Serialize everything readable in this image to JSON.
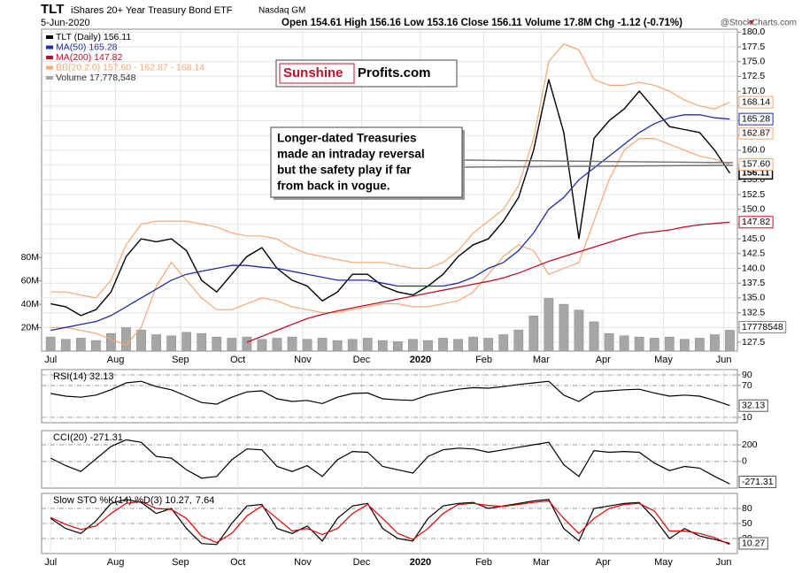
{
  "header": {
    "symbol": "TLT",
    "name": "iShares 20+ Year Treasury Bond ETF",
    "exchange": "Nasdaq GM",
    "date": "5-Jun-2020",
    "quote": "Open 154.61  High 156.16  Low 153.16  Close 156.11  Volume 17.8M  Chg -1.12 (-0.71%)",
    "source": "@StockCharts.com"
  },
  "logo": [
    "Sunshine",
    "Profits.com"
  ],
  "annotation": [
    "Longer-dated Treasuries",
    "made an intraday reversal",
    "but the safety play if far",
    "from back in vogue."
  ],
  "chart_data": [
    {
      "type": "line",
      "x": [
        0,
        1,
        2,
        3,
        4,
        5,
        6,
        7,
        8,
        9,
        10,
        11,
        12,
        13,
        14,
        15,
        16,
        17,
        18,
        19,
        20,
        21,
        22,
        23,
        24,
        25,
        26,
        27,
        28,
        29,
        30,
        31,
        32,
        33,
        34,
        35,
        36,
        37,
        38,
        39,
        40,
        41,
        42,
        43,
        44,
        45
      ],
      "xlim": [
        -0.6,
        45.5
      ],
      "xticks": [
        {
          "value": 0,
          "label": "Jul"
        },
        {
          "value": 4.3,
          "label": "Aug"
        },
        {
          "value": 8.6,
          "label": "Sep"
        },
        {
          "value": 12.4,
          "label": "Oct"
        },
        {
          "value": 16.7,
          "label": "Nov"
        },
        {
          "value": 20.6,
          "label": "Dec"
        },
        {
          "value": 24.5,
          "label": "2020"
        },
        {
          "value": 28.7,
          "label": "Feb"
        },
        {
          "value": 32.5,
          "label": "Mar"
        },
        {
          "value": 36.6,
          "label": "Apr"
        },
        {
          "value": 40.6,
          "label": "May"
        },
        {
          "value": 44.6,
          "label": "Jun"
        }
      ],
      "ylim": [
        126,
        180.5
      ],
      "yticks": [
        127.5,
        {
          "value": 130,
          "label": "130.0"
        },
        132.5,
        {
          "value": 135,
          "label": "135.0"
        },
        137.5,
        {
          "value": 140,
          "label": "140.0"
        },
        142.5,
        {
          "value": 145,
          "label": "145.0"
        },
        147.5,
        {
          "value": 150,
          "label": "150.0"
        },
        152.5,
        {
          "value": 155,
          "label": "155.0"
        },
        157.5,
        {
          "value": 160,
          "label": "160.0"
        },
        162.5,
        {
          "value": 165,
          "label": "165.0"
        },
        167.5,
        {
          "value": 170,
          "label": "170.0"
        },
        172.5,
        {
          "value": 175,
          "label": "175.0"
        },
        177.5,
        {
          "value": 180,
          "label": "180.0"
        }
      ],
      "y2lim": [
        0,
        275000000
      ],
      "y2ticks": [
        {
          "value": 20000000,
          "label": "20M"
        },
        {
          "value": 40000000,
          "label": "40M"
        },
        {
          "value": 60000000,
          "label": "60M"
        },
        {
          "value": 80000000,
          "label": "80M"
        }
      ],
      "grid": true,
      "series": [
        {
          "name": "TLT (Daily) 156.11",
          "color": "#000000",
          "values": [
            134,
            133.5,
            132,
            133,
            136,
            142,
            145,
            144.5,
            145,
            143,
            138,
            136,
            139,
            142,
            143.5,
            140,
            138,
            137,
            134.5,
            136,
            139,
            139,
            137,
            136,
            135.5,
            137,
            139,
            142,
            144,
            145,
            148,
            152,
            160,
            172,
            163,
            145,
            162,
            165,
            167,
            170,
            167,
            164,
            163.5,
            163,
            160,
            156.11
          ]
        },
        {
          "name": "MA(50) 165.28",
          "color": "#1f2f9f",
          "values": [
            129.5,
            130,
            130.5,
            131,
            132,
            133.5,
            135,
            136.5,
            138,
            139,
            139.5,
            140,
            140.5,
            140.5,
            140.2,
            140,
            139.5,
            139,
            138.5,
            138,
            138,
            138,
            137.5,
            137,
            137,
            137,
            137,
            137.5,
            138.5,
            140,
            141,
            143,
            146,
            150,
            152,
            155,
            157,
            159,
            161,
            163,
            164.5,
            165.5,
            166,
            166,
            165.5,
            165.28
          ]
        },
        {
          "name": "MA(200) 147.82",
          "color": "#c0102a",
          "values": [
            null,
            null,
            null,
            null,
            null,
            null,
            null,
            null,
            null,
            null,
            null,
            null,
            null,
            127.5,
            128.5,
            129.5,
            130.5,
            131.5,
            132.2,
            132.8,
            133.3,
            133.8,
            134.3,
            134.8,
            135.3,
            135.8,
            136.3,
            136.8,
            137.3,
            137.8,
            138.4,
            139.2,
            140.2,
            141.2,
            142,
            142.8,
            143.6,
            144.4,
            145.2,
            145.9,
            146.2,
            146.5,
            147,
            147.4,
            147.6,
            147.82
          ]
        },
        {
          "name": "BB(20,2.0) 157.60 - 162.87 - 168.14",
          "color": "#f4a874",
          "upper": [
            136,
            136,
            135.5,
            135,
            138,
            144,
            147.5,
            148,
            148,
            148,
            147.5,
            147,
            146,
            145.5,
            145.5,
            145,
            143.5,
            142.5,
            142,
            141.5,
            141,
            141,
            141,
            140.5,
            140,
            140,
            141,
            143,
            146,
            148,
            150,
            154,
            162,
            175,
            178,
            177,
            172,
            171,
            171,
            171.5,
            171,
            170,
            168.5,
            167.5,
            167,
            168.14
          ],
          "lower": [
            130,
            130,
            129.5,
            129,
            128,
            127,
            130,
            137,
            141,
            138,
            135,
            133,
            133,
            134,
            135,
            134.5,
            133.5,
            133,
            132.5,
            132.5,
            133,
            133.5,
            134,
            134,
            133.5,
            133.5,
            134,
            134.5,
            136,
            139,
            142,
            144,
            143,
            139,
            140,
            141,
            148,
            155,
            160,
            162,
            162,
            161,
            160,
            159,
            158.5,
            157.6
          ],
          "upper_label": "168.14",
          "middle_label": "162.87",
          "lower_label": "157.60"
        },
        {
          "name": "Volume 17,778,548",
          "color": "#a6a6a6",
          "axis": "y2",
          "values": [
            12000000,
            10000000,
            11000000,
            9000000,
            15000000,
            20000000,
            18000000,
            14000000,
            13000000,
            16000000,
            15000000,
            12000000,
            11000000,
            12000000,
            10000000,
            11000000,
            12000000,
            10000000,
            11000000,
            9000000,
            10000000,
            11000000,
            9000000,
            8000000,
            10000000,
            9000000,
            11000000,
            10000000,
            12000000,
            11000000,
            14000000,
            18000000,
            30000000,
            45000000,
            40000000,
            35000000,
            25000000,
            15000000,
            13000000,
            12000000,
            11000000,
            12000000,
            10000000,
            11000000,
            14000000,
            17778548
          ]
        }
      ]
    },
    {
      "type": "line",
      "title": "RSI(14) 32.13",
      "ylim": [
        0,
        100
      ],
      "yticks": [
        10,
        70,
        90
      ],
      "series": [
        {
          "color": "#000000",
          "values": [
            55,
            50,
            48,
            52,
            62,
            75,
            78,
            68,
            62,
            50,
            38,
            35,
            48,
            58,
            60,
            45,
            40,
            42,
            36,
            48,
            55,
            56,
            45,
            43,
            42,
            52,
            58,
            63,
            66,
            65,
            68,
            72,
            75,
            78,
            52,
            40,
            58,
            60,
            62,
            63,
            56,
            50,
            52,
            50,
            42,
            32.13
          ]
        }
      ]
    },
    {
      "type": "line",
      "title": "CCI(20) -271.31",
      "ylim": [
        -320,
        370
      ],
      "yticks": [
        0,
        200
      ],
      "series": [
        {
          "color": "#000000",
          "values": [
            40,
            -50,
            -120,
            30,
            180,
            260,
            230,
            60,
            40,
            -100,
            -200,
            -180,
            20,
            150,
            140,
            -60,
            -120,
            -50,
            -180,
            20,
            120,
            110,
            -60,
            -100,
            -140,
            60,
            140,
            160,
            150,
            110,
            140,
            170,
            200,
            230,
            -40,
            -180,
            130,
            110,
            120,
            110,
            -20,
            -110,
            -60,
            -80,
            -180,
            -271.31
          ]
        }
      ]
    },
    {
      "type": "line",
      "title": "Slow STO %K(14) %D(3) 10.27,",
      "ylim": [
        -10,
        110
      ],
      "yticks": [
        20,
        50,
        80
      ],
      "series": [
        {
          "color": "#000000",
          "values": [
            60,
            40,
            30,
            55,
            90,
            98,
            92,
            70,
            80,
            40,
            10,
            8,
            50,
            85,
            88,
            40,
            30,
            45,
            15,
            60,
            85,
            90,
            40,
            20,
            15,
            60,
            85,
            90,
            92,
            80,
            85,
            90,
            95,
            98,
            40,
            15,
            80,
            85,
            90,
            92,
            60,
            20,
            40,
            25,
            18,
            10.27
          ]
        },
        {
          "color": "#e00000",
          "values": [
            62,
            48,
            38,
            45,
            70,
            90,
            94,
            80,
            78,
            60,
            25,
            12,
            30,
            65,
            85,
            60,
            35,
            40,
            28,
            40,
            70,
            88,
            60,
            30,
            18,
            40,
            70,
            88,
            90,
            86,
            84,
            88,
            92,
            95,
            60,
            30,
            60,
            80,
            88,
            90,
            75,
            35,
            35,
            30,
            22,
            7.64
          ]
        }
      ]
    }
  ]
}
